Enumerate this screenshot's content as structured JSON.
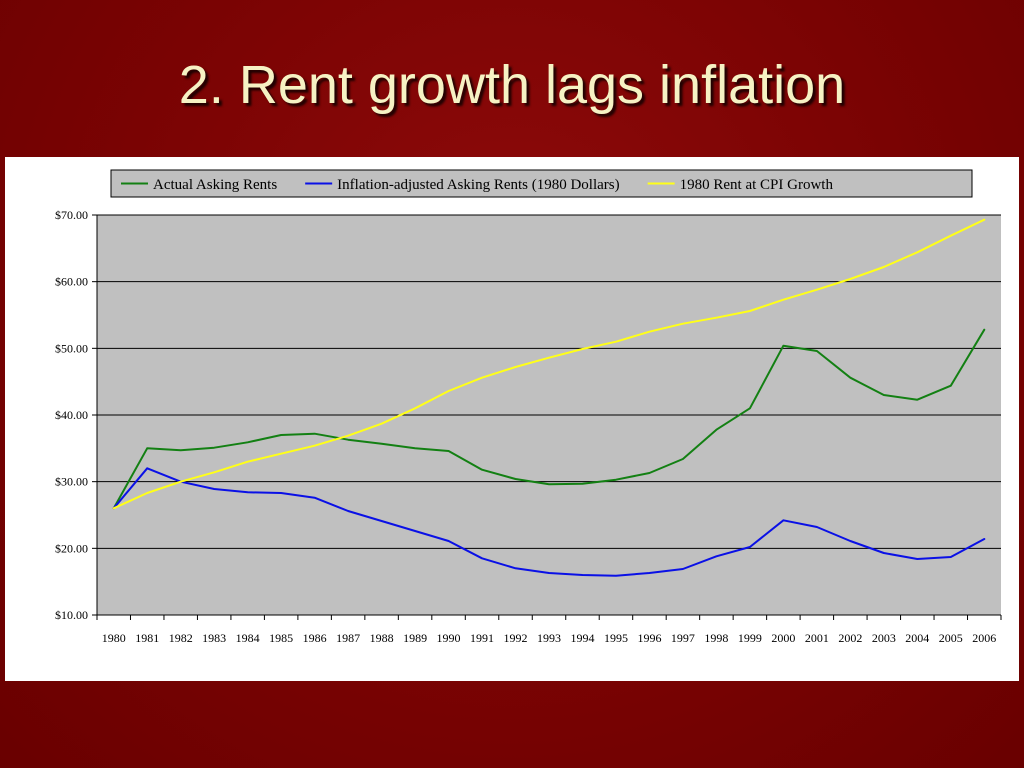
{
  "slide": {
    "title": "2. Rent growth lags inflation"
  },
  "colors": {
    "background": "#7a0303",
    "title": "#f6f2c4",
    "plot_area": "#c0c0c0",
    "gridline": "#000000"
  },
  "chart_data": {
    "type": "line",
    "title": "",
    "xlabel": "",
    "ylabel": "",
    "legend_position": "top",
    "grid": true,
    "ylim": [
      10,
      70
    ],
    "ytick_values": [
      10,
      20,
      30,
      40,
      50,
      60,
      70
    ],
    "ytick_labels": [
      "$10.00",
      "$20.00",
      "$30.00",
      "$40.00",
      "$50.00",
      "$60.00",
      "$70.00"
    ],
    "x": [
      "1980",
      "1981",
      "1982",
      "1983",
      "1984",
      "1985",
      "1986",
      "1987",
      "1988",
      "1989",
      "1990",
      "1991",
      "1992",
      "1993",
      "1994",
      "1995",
      "1996",
      "1997",
      "1998",
      "1999",
      "2000",
      "2001",
      "2002",
      "2003",
      "2004",
      "2005",
      "2006"
    ],
    "series": [
      {
        "name": "Actual Asking Rents",
        "color": "#138013",
        "values": [
          26.0,
          35.0,
          34.7,
          35.1,
          35.9,
          37.0,
          37.2,
          36.3,
          35.7,
          35.0,
          34.6,
          31.8,
          30.4,
          29.6,
          29.7,
          30.3,
          31.3,
          33.4,
          37.8,
          41.0,
          50.4,
          49.6,
          45.6,
          43.0,
          42.3,
          44.4,
          52.8
        ]
      },
      {
        "name": "Inflation-adjusted Asking Rents (1980 Dollars)",
        "color": "#0a10e6",
        "values": [
          26.0,
          32.0,
          30.0,
          28.9,
          28.4,
          28.3,
          27.6,
          25.6,
          24.1,
          22.6,
          21.1,
          18.5,
          17.0,
          16.3,
          16.0,
          15.9,
          16.3,
          16.9,
          18.8,
          20.2,
          24.2,
          23.2,
          21.1,
          19.3,
          18.4,
          18.7,
          21.4
        ]
      },
      {
        "name": "1980 Rent at CPI Growth",
        "color": "#ffff18",
        "values": [
          26.0,
          28.3,
          30.0,
          31.4,
          33.0,
          34.2,
          35.4,
          36.9,
          38.7,
          41.0,
          43.6,
          45.6,
          47.2,
          48.6,
          49.9,
          51.0,
          52.5,
          53.7,
          54.6,
          55.6,
          57.3,
          58.8,
          60.4,
          62.2,
          64.4,
          66.9,
          69.3
        ]
      }
    ]
  }
}
